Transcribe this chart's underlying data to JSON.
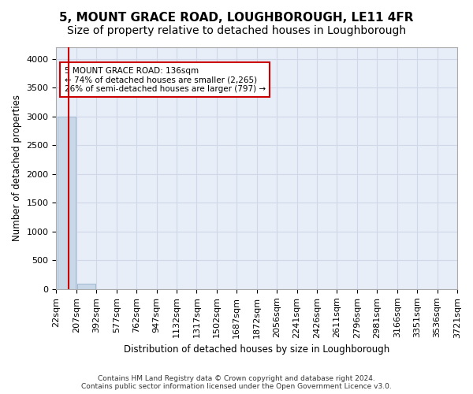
{
  "title": "5, MOUNT GRACE ROAD, LOUGHBOROUGH, LE11 4FR",
  "subtitle": "Size of property relative to detached houses in Loughborough",
  "xlabel": "Distribution of detached houses by size in Loughborough",
  "ylabel": "Number of detached properties",
  "bin_labels": [
    "22sqm",
    "207sqm",
    "392sqm",
    "577sqm",
    "762sqm",
    "947sqm",
    "1132sqm",
    "1317sqm",
    "1502sqm",
    "1687sqm",
    "1872sqm",
    "2056sqm",
    "2241sqm",
    "2426sqm",
    "2611sqm",
    "2796sqm",
    "2981sqm",
    "3166sqm",
    "3351sqm",
    "3536sqm",
    "3721sqm"
  ],
  "bar_heights": [
    3000,
    100,
    0,
    0,
    0,
    0,
    0,
    0,
    0,
    0,
    0,
    0,
    0,
    0,
    0,
    0,
    0,
    0,
    0,
    0
  ],
  "bar_color": "#c8d8e8",
  "bar_edge_color": "#a0b8d0",
  "grid_color": "#d0d8e8",
  "background_color": "#e8eef8",
  "property_line_color": "#cc0000",
  "annotation_text": "5 MOUNT GRACE ROAD: 136sqm\n← 74% of detached houses are smaller (2,265)\n26% of semi-detached houses are larger (797) →",
  "annotation_box_color": "#ffffff",
  "annotation_box_edge": "#cc0000",
  "ylim": [
    0,
    4200
  ],
  "yticks": [
    0,
    500,
    1000,
    1500,
    2000,
    2500,
    3000,
    3500,
    4000
  ],
  "footer_line1": "Contains HM Land Registry data © Crown copyright and database right 2024.",
  "footer_line2": "Contains public sector information licensed under the Open Government Licence v3.0.",
  "title_fontsize": 11,
  "subtitle_fontsize": 10,
  "property_sqm": 136,
  "bin_min": 22,
  "bin_max": 207
}
